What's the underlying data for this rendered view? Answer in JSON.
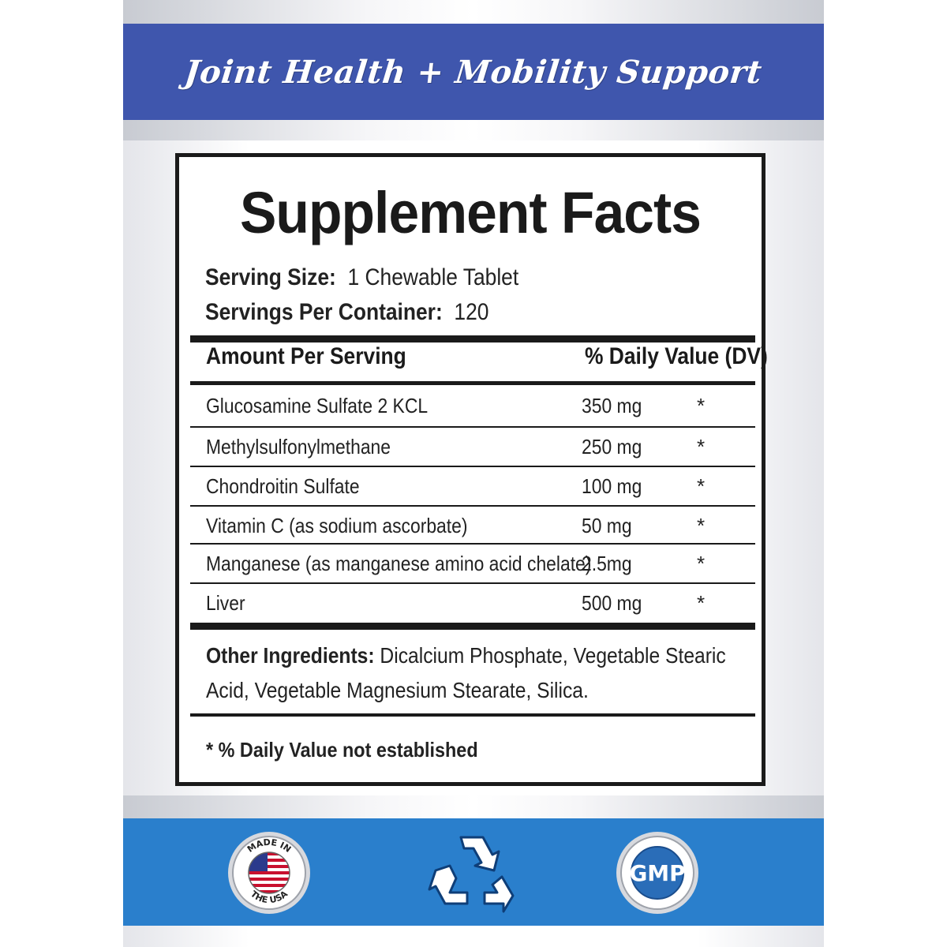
{
  "banner": {
    "title": "Joint Health + Mobility Support"
  },
  "facts": {
    "title": "Supplement Facts",
    "serving_size_label": "Serving Size:",
    "serving_size_value": "1 Chewable Tablet",
    "servings_per_container_label": "Servings Per Container:",
    "servings_per_container_value": "120",
    "header_amount": "Amount  Per Serving",
    "header_dv": "% Daily Value (DV)",
    "rows": [
      {
        "name": "Glucosamine Sulfate 2 KCL",
        "amount": "350 mg",
        "dv": "*"
      },
      {
        "name": "Methylsulfonylmethane",
        "amount": "250 mg",
        "dv": "*"
      },
      {
        "name": "Chondroitin Sulfate",
        "amount": "100 mg",
        "dv": "*"
      },
      {
        "name": "Vitamin C (as sodium ascorbate)",
        "amount": "50 mg",
        "dv": "*"
      },
      {
        "name": "Manganese (as manganese amino acid chelate)",
        "amount": "2.5mg",
        "dv": "*"
      },
      {
        "name": "Liver",
        "amount": "500 mg",
        "dv": "*"
      }
    ],
    "other_label": "Other Ingredients:",
    "other_text": "Dicalcium Phosphate, Vegetable Stearic Acid, Vegetable Magnesium Stearate, Silica.",
    "footnote": "* % Daily Value not established"
  },
  "badges": {
    "made_in_top": "MADE IN",
    "made_in_bottom": "THE USA",
    "gmp": "GMP"
  },
  "colors": {
    "top_banner": "#3f56ad",
    "bottom_banner": "#2a7fcc"
  }
}
